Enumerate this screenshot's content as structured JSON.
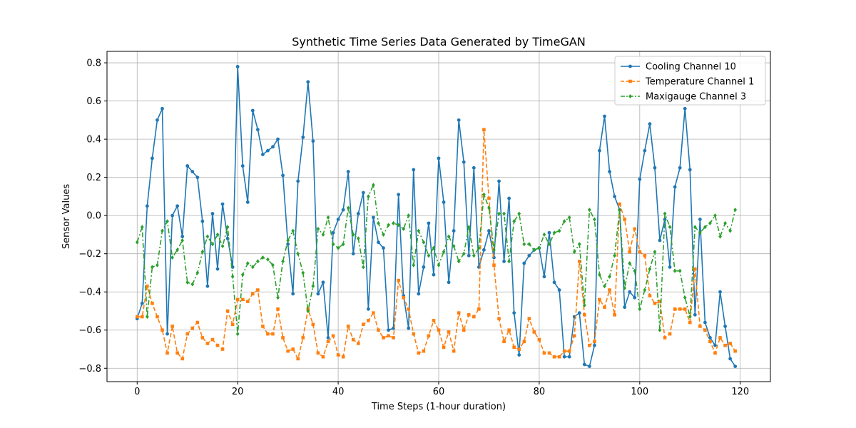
{
  "chart_data": {
    "type": "line",
    "title": "Synthetic Time Series Data Generated by TimeGAN",
    "xlabel": "Time Steps (1-hour duration)",
    "ylabel": "Sensor Values",
    "xlim": [
      -6,
      126
    ],
    "ylim": [
      -0.87,
      0.86
    ],
    "xticks": [
      0,
      20,
      40,
      60,
      80,
      100,
      120
    ],
    "yticks": [
      -0.8,
      -0.6,
      -0.4,
      -0.2,
      0.0,
      0.2,
      0.4,
      0.6,
      0.8
    ],
    "xtick_labels": [
      "0",
      "20",
      "40",
      "60",
      "80",
      "100",
      "120"
    ],
    "ytick_labels": [
      "−0.8",
      "−0.6",
      "−0.4",
      "−0.2",
      "0.0",
      "0.2",
      "0.4",
      "0.6",
      "0.8"
    ],
    "grid": true,
    "legend_position": "top-right",
    "series": [
      {
        "name": "Cooling Channel 10",
        "color": "#1f77b4",
        "dash": "solid",
        "marker": "circle",
        "values": [
          -0.54,
          -0.46,
          0.05,
          0.3,
          0.5,
          0.56,
          -0.62,
          0.0,
          0.05,
          -0.11,
          0.26,
          0.23,
          0.2,
          -0.03,
          -0.37,
          0.01,
          -0.28,
          0.06,
          -0.12,
          -0.27,
          0.78,
          0.26,
          0.07,
          0.55,
          0.45,
          0.32,
          0.34,
          0.36,
          0.4,
          0.21,
          -0.15,
          -0.41,
          0.18,
          0.41,
          0.7,
          0.39,
          -0.41,
          -0.35,
          -0.64,
          -0.09,
          -0.02,
          0.03,
          0.23,
          -0.2,
          0.01,
          0.12,
          -0.49,
          -0.01,
          -0.14,
          -0.17,
          -0.6,
          -0.59,
          0.11,
          -0.42,
          -0.59,
          0.24,
          -0.41,
          -0.27,
          -0.04,
          -0.31,
          0.3,
          0.07,
          -0.35,
          -0.08,
          0.5,
          0.28,
          -0.21,
          0.25,
          -0.27,
          -0.18,
          -0.08,
          -0.22,
          0.18,
          -0.24,
          0.09,
          -0.51,
          -0.73,
          -0.25,
          -0.21,
          -0.18,
          -0.17,
          -0.32,
          -0.09,
          -0.35,
          -0.39,
          -0.74,
          -0.74,
          -0.53,
          -0.51,
          -0.78,
          -0.79,
          -0.68,
          0.34,
          0.52,
          0.23,
          0.1,
          0.03,
          -0.48,
          -0.4,
          -0.43,
          0.19,
          0.34,
          0.48,
          0.25,
          -0.13,
          -0.02,
          -0.27,
          0.15,
          0.25,
          0.56,
          0.24,
          -0.52,
          -0.02,
          -0.56,
          -0.64,
          -0.68,
          -0.4,
          -0.58,
          -0.75,
          -0.79
        ]
      },
      {
        "name": "Temperature Channel 1",
        "color": "#ff7f0e",
        "dash": "dashed",
        "marker": "square",
        "values": [
          -0.53,
          -0.53,
          -0.37,
          -0.46,
          -0.53,
          -0.6,
          -0.72,
          -0.58,
          -0.72,
          -0.75,
          -0.62,
          -0.59,
          -0.56,
          -0.64,
          -0.67,
          -0.65,
          -0.68,
          -0.7,
          -0.5,
          -0.57,
          -0.44,
          -0.44,
          -0.45,
          -0.41,
          -0.39,
          -0.58,
          -0.62,
          -0.62,
          -0.49,
          -0.64,
          -0.71,
          -0.7,
          -0.75,
          -0.64,
          -0.49,
          -0.57,
          -0.72,
          -0.74,
          -0.66,
          -0.63,
          -0.73,
          -0.74,
          -0.58,
          -0.65,
          -0.67,
          -0.57,
          -0.55,
          -0.51,
          -0.6,
          -0.64,
          -0.63,
          -0.64,
          -0.34,
          -0.43,
          -0.49,
          -0.62,
          -0.72,
          -0.71,
          -0.63,
          -0.55,
          -0.6,
          -0.69,
          -0.61,
          -0.71,
          -0.51,
          -0.6,
          -0.52,
          -0.53,
          -0.49,
          0.45,
          0.09,
          -0.26,
          -0.54,
          -0.66,
          -0.6,
          -0.69,
          -0.7,
          -0.66,
          -0.54,
          -0.61,
          -0.65,
          -0.72,
          -0.72,
          -0.74,
          -0.74,
          -0.71,
          -0.71,
          -0.63,
          -0.24,
          -0.52,
          -0.68,
          -0.66,
          -0.44,
          -0.48,
          -0.39,
          -0.52,
          0.06,
          -0.02,
          -0.19,
          -0.07,
          -0.19,
          -0.21,
          -0.42,
          -0.46,
          -0.45,
          -0.64,
          -0.62,
          -0.49,
          -0.49,
          -0.49,
          -0.56,
          -0.28,
          -0.58,
          -0.6,
          -0.66,
          -0.72,
          -0.64,
          -0.68,
          -0.67,
          -0.71
        ]
      },
      {
        "name": "Maxigauge Channel 3",
        "color": "#2ca02c",
        "dash": "dashdot",
        "marker": "diamond",
        "values": [
          -0.14,
          -0.06,
          -0.53,
          -0.27,
          -0.26,
          -0.08,
          -0.03,
          -0.22,
          -0.18,
          -0.13,
          -0.35,
          -0.36,
          -0.3,
          -0.19,
          -0.11,
          -0.15,
          -0.1,
          -0.16,
          -0.06,
          -0.32,
          -0.62,
          -0.31,
          -0.25,
          -0.27,
          -0.24,
          -0.22,
          -0.23,
          -0.26,
          -0.43,
          -0.24,
          -0.13,
          -0.08,
          -0.2,
          -0.3,
          -0.5,
          -0.37,
          -0.07,
          -0.1,
          -0.01,
          -0.15,
          -0.17,
          -0.15,
          0.04,
          -0.1,
          -0.12,
          -0.27,
          0.1,
          0.16,
          -0.04,
          -0.1,
          -0.05,
          -0.04,
          -0.05,
          -0.07,
          0.0,
          -0.26,
          -0.08,
          -0.14,
          -0.21,
          -0.17,
          -0.26,
          -0.19,
          -0.11,
          -0.16,
          -0.24,
          -0.2,
          -0.06,
          -0.21,
          -0.17,
          0.11,
          0.04,
          -0.18,
          0.01,
          0.01,
          -0.24,
          -0.03,
          0.01,
          -0.15,
          -0.15,
          -0.18,
          -0.17,
          -0.1,
          -0.15,
          -0.09,
          -0.08,
          -0.03,
          -0.01,
          -0.19,
          -0.15,
          -0.47,
          0.03,
          -0.02,
          -0.31,
          -0.37,
          -0.32,
          -0.21,
          0.03,
          -0.38,
          -0.25,
          -0.29,
          -0.49,
          -0.39,
          -0.28,
          -0.19,
          -0.6,
          0.01,
          -0.06,
          -0.29,
          -0.29,
          -0.43,
          -0.53,
          -0.06,
          -0.09,
          -0.06,
          -0.04,
          0.0,
          -0.11,
          -0.04,
          -0.08,
          0.03
        ]
      }
    ]
  }
}
